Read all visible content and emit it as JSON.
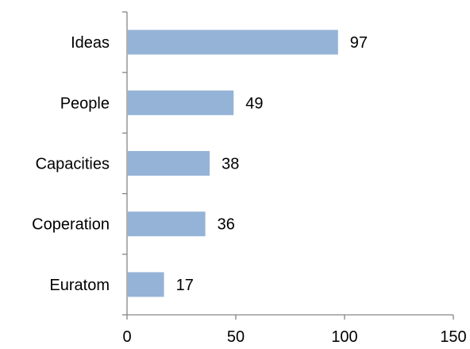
{
  "chart_data": {
    "type": "bar",
    "orientation": "horizontal",
    "categories": [
      "Ideas",
      "People",
      "Capacities",
      "Coperation",
      "Euratom"
    ],
    "values": [
      97,
      49,
      38,
      36,
      17
    ],
    "xlim": [
      0,
      150
    ],
    "xticks": [
      "0",
      "50",
      "100",
      "150"
    ],
    "data_labels": [
      "97",
      "49",
      "38",
      "36",
      "17"
    ],
    "bar_color": "#95b3d7",
    "axis_color": "#868686",
    "title": "",
    "xlabel": "",
    "ylabel": "",
    "grid": false,
    "legend": "none"
  }
}
